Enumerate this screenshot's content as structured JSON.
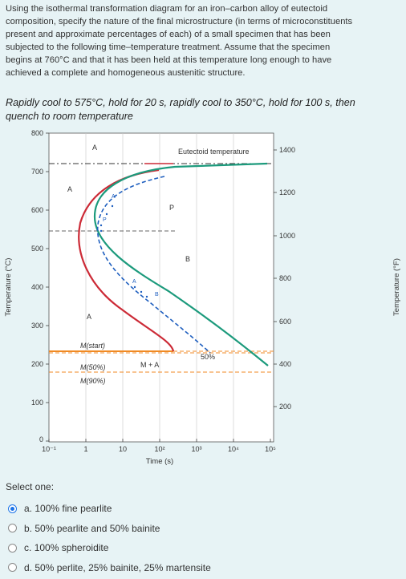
{
  "question": {
    "lines": [
      "Using the isothermal transformation diagram for an iron–carbon alloy of eutectoid",
      "composition, specify the nature of the final microstructure (in terms of microconstituents",
      "present and approximate percentages of each) of a small specimen that has been",
      "subjected to the following time–temperature treatment. Assume that the specimen",
      "begins at 760°C and that it has been held at this temperature long enough to have",
      "achieved a complete and homogeneous austenitic structure."
    ]
  },
  "treatment": {
    "lines": [
      "Rapidly cool to 575°C, hold for 20 s, rapidly cool to 350°C, hold for 100 s, then",
      "quench to room temperature"
    ]
  },
  "diagram": {
    "y_left_label": "Temperature (°C)",
    "y_right_label": "Temperature (°F)",
    "x_label": "Time (s)",
    "y_left_ticks": [
      "800",
      "700",
      "600",
      "500",
      "400",
      "300",
      "200",
      "100",
      "0"
    ],
    "y_right_ticks": [
      "1400",
      "1200",
      "1000",
      "800",
      "600",
      "400",
      "200"
    ],
    "x_ticks": [
      "10⁻¹",
      "1",
      "10",
      "10²",
      "10³",
      "10⁴",
      "10⁵"
    ],
    "labels": {
      "eutectoid": "Eutectoid temperature",
      "austenite_top": "A",
      "austenite_left": "A",
      "austenite_low": "A",
      "pearlite": "P",
      "bainite": "B",
      "fifty": "50%",
      "m_plus_a": "M + A",
      "m_start": "M(start)",
      "m_50": "M(50%)",
      "m_90": "M(90%)",
      "path_p": "P",
      "path_a1": "A",
      "path_a2": "A",
      "path_b": "B"
    },
    "colors": {
      "red_curve": "#cc2a36",
      "green_curve": "#1c9a7c",
      "path": "#1f5fbf",
      "martensite": "#f08a24"
    }
  },
  "select": {
    "label": "Select one:"
  },
  "options": [
    {
      "letter": "a.",
      "text": "100% fine pearlite",
      "checked": true
    },
    {
      "letter": "b.",
      "text": "50% pearlite and 50% bainite",
      "checked": false
    },
    {
      "letter": "c.",
      "text": "100% spheroidite",
      "checked": false
    },
    {
      "letter": "d.",
      "text": "50% perlite, 25% bainite, 25% martensite",
      "checked": false
    }
  ]
}
